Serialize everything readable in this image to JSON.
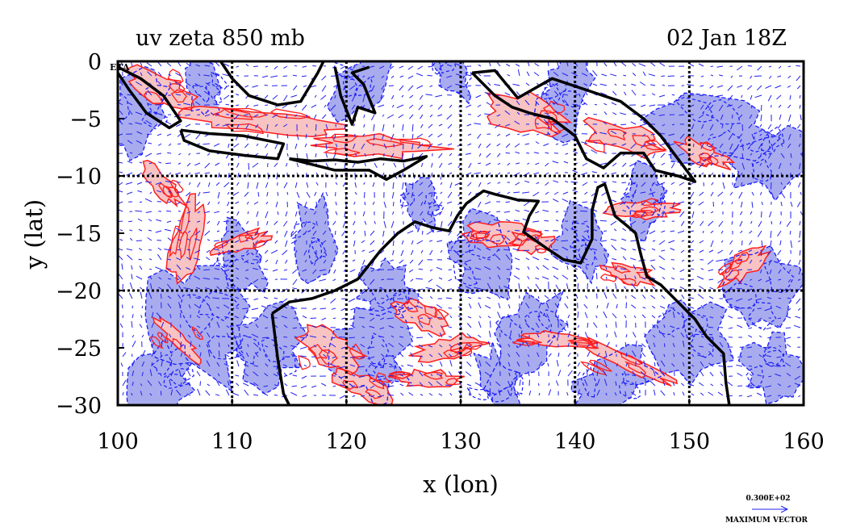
{
  "plot": {
    "title_left": "uv zeta 850 mb",
    "title_right": "02 Jan 18Z",
    "corner_label": "ETA",
    "xlabel": "x (lon)",
    "ylabel": "y (lat)",
    "x_ticks": [
      "100",
      "110",
      "120",
      "130",
      "140",
      "150",
      "160"
    ],
    "y_ticks": [
      "0",
      "−5",
      "−10",
      "−15",
      "−20",
      "−25",
      "−30"
    ],
    "xlim": [
      100,
      160
    ],
    "ylim": [
      -30,
      0
    ],
    "grid_lon": [
      110,
      120,
      130,
      140,
      150
    ],
    "grid_lat": [
      -10,
      -20
    ]
  },
  "legend": {
    "vector_value": "0.300E+02",
    "vector_label": "MAXIMUM VECTOR"
  },
  "colors": {
    "positive_contour": "#ff1e1e",
    "positive_fill": "#f7c3c3",
    "negative_contour": "#1a1aff",
    "negative_fill": "#a8acef",
    "coastline": "#000000",
    "vectors": "#2222ee"
  },
  "chart_data": {
    "type": "map",
    "fields": [
      "uv wind vectors",
      "zeta (relative vorticity)"
    ],
    "level": "850 mb"
  }
}
